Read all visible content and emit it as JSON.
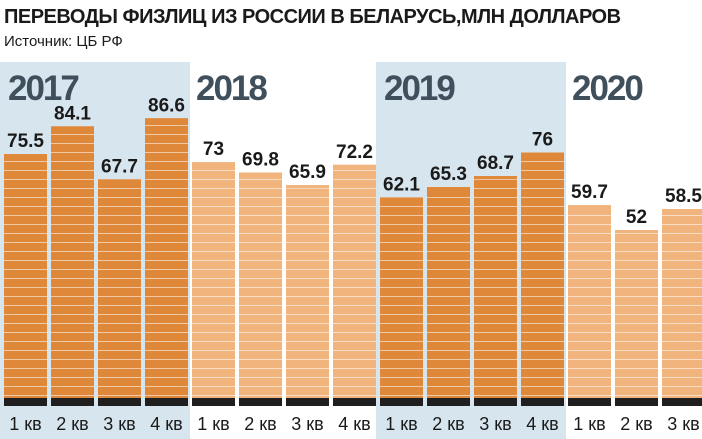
{
  "header": {
    "title": "ПЕРЕВОДЫ ФИЗЛИЦ ИЗ РОССИИ В БЕЛАРУСЬ,МЛН ДОЛЛАРОВ",
    "source": "Источник: ЦБ РФ"
  },
  "colors": {
    "dark_bar": "#e0883a",
    "light_bar": "#f0b47c",
    "year_band": "#d7e5ef",
    "year_text": "#3f4f5c",
    "baseline": "#1f1f1f",
    "label_text": "#1a1a1a"
  },
  "chart_data": {
    "type": "bar",
    "title": "ПЕРЕВОДЫ ФИЗЛИЦ ИЗ РОССИИ В БЕЛАРУСЬ,МЛН ДОЛЛАРОВ",
    "subtitle": "Источник: ЦБ РФ",
    "unit": "млн долларов",
    "groups": [
      {
        "year": "2017",
        "shaded": true,
        "quarters": [
          "1 кв",
          "2 кв",
          "3 кв",
          "4 кв"
        ],
        "values": [
          75.5,
          84.1,
          67.7,
          86.6
        ]
      },
      {
        "year": "2018",
        "shaded": false,
        "quarters": [
          "1 кв",
          "2 кв",
          "3 кв",
          "4 кв"
        ],
        "values": [
          73,
          69.8,
          65.9,
          72.2
        ]
      },
      {
        "year": "2019",
        "shaded": true,
        "quarters": [
          "1 кв",
          "2 кв",
          "3 кв",
          "4 кв"
        ],
        "values": [
          62.1,
          65.3,
          68.7,
          76
        ]
      },
      {
        "year": "2020",
        "shaded": false,
        "quarters": [
          "1 кв",
          "2 кв",
          "3 кв"
        ],
        "values": [
          59.7,
          52,
          58.5
        ]
      }
    ],
    "ylim": [
      0,
      100
    ],
    "grid": false,
    "legend": "none"
  }
}
